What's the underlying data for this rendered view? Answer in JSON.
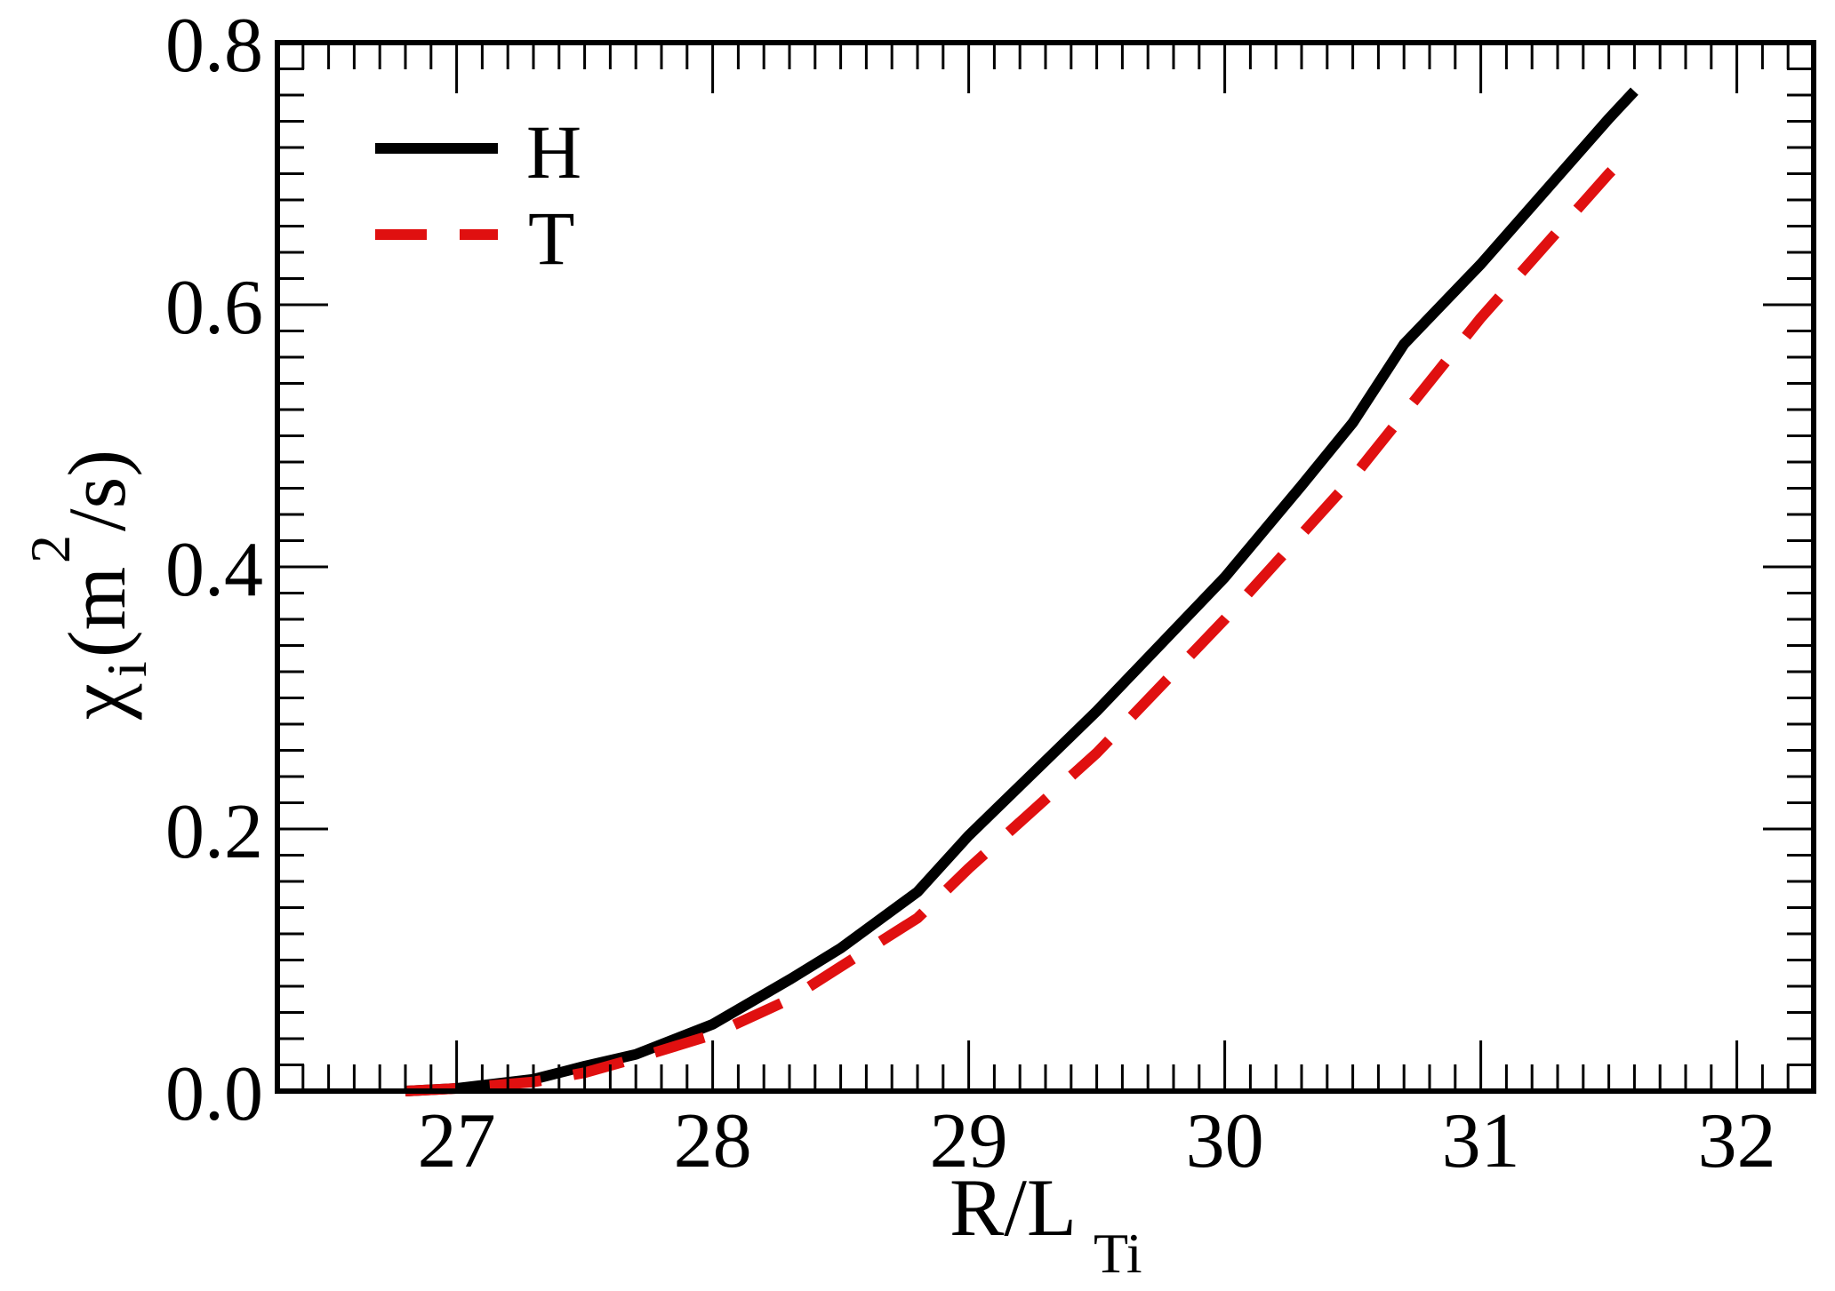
{
  "chart_data": {
    "type": "line",
    "title": "",
    "xlabel": "R/L_Ti",
    "xlabel_main": "R/L",
    "xlabel_sub": "Ti",
    "ylabel": "χ_i (m^2/s)",
    "ylabel_parts": {
      "chi": "χ",
      "sub": "i",
      "open": "(m",
      "sup": "2",
      "close": "/s)"
    },
    "xlim": [
      26.3,
      32.3
    ],
    "ylim": [
      0.0,
      0.8
    ],
    "xticks": [
      27,
      28,
      29,
      30,
      31,
      32
    ],
    "xtick_labels": [
      "27",
      "28",
      "29",
      "30",
      "31",
      "32"
    ],
    "x_minor_step": 0.1,
    "yticks": [
      0.0,
      0.2,
      0.4,
      0.6,
      0.8
    ],
    "ytick_labels": [
      "0.0",
      "0.2",
      "0.4",
      "0.6",
      "0.8"
    ],
    "y_minor_step": 0.02,
    "grid": false,
    "legend_position": "upper left",
    "series": [
      {
        "name": "H",
        "color": "#000000",
        "style": "solid",
        "x": [
          26.8,
          27.0,
          27.3,
          27.5,
          27.7,
          28.0,
          28.3,
          28.5,
          28.8,
          29.0,
          29.5,
          30.0,
          30.3,
          30.5,
          30.7,
          31.0,
          31.5,
          31.6
        ],
        "y": [
          0.0,
          0.002,
          0.009,
          0.019,
          0.028,
          0.051,
          0.085,
          0.109,
          0.152,
          0.195,
          0.29,
          0.392,
          0.462,
          0.51,
          0.57,
          0.631,
          0.742,
          0.763
        ]
      },
      {
        "name": "T",
        "color": "#e01010",
        "style": "dashed",
        "x": [
          26.8,
          27.0,
          27.3,
          27.5,
          27.7,
          28.0,
          28.3,
          28.5,
          28.8,
          29.0,
          29.5,
          30.0,
          30.5,
          31.0,
          31.5,
          31.6
        ],
        "y": [
          0.0,
          0.002,
          0.007,
          0.014,
          0.025,
          0.043,
          0.07,
          0.095,
          0.132,
          0.17,
          0.258,
          0.36,
          0.468,
          0.59,
          0.7,
          0.72
        ]
      }
    ]
  },
  "legend": {
    "items": [
      {
        "label": "H",
        "color": "#000000",
        "style": "solid"
      },
      {
        "label": "T",
        "color": "#e01010",
        "style": "dashed"
      }
    ]
  }
}
